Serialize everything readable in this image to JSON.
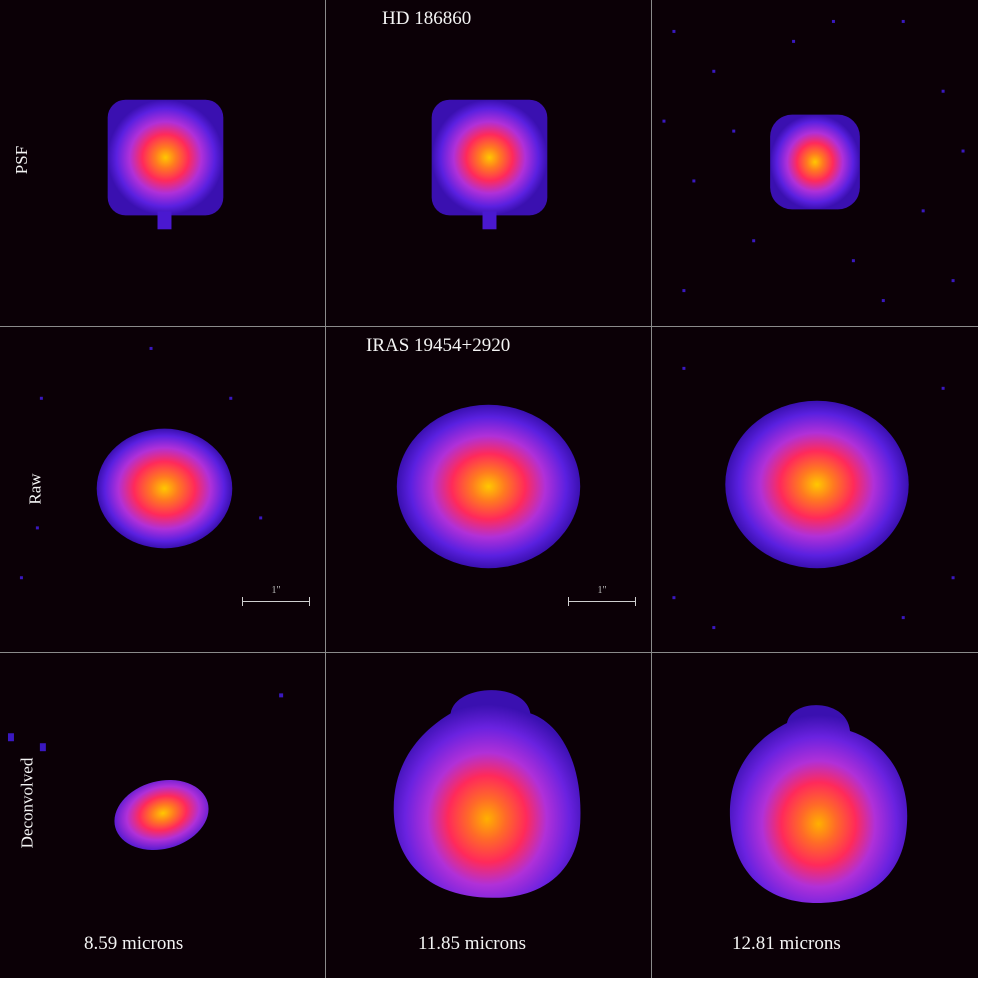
{
  "rows": [
    {
      "key": "psf",
      "section_title": "HD 186860",
      "row_label": "PSF"
    },
    {
      "key": "raw",
      "section_title": "IRAS 19454+2920",
      "row_label": "Raw"
    },
    {
      "key": "deconvolved",
      "section_title": "",
      "row_label": "Deconvolved"
    }
  ],
  "columns": [
    {
      "wavelength_label": "8.59 microns"
    },
    {
      "wavelength_label": "11.85 microns"
    },
    {
      "wavelength_label": "12.81 microns"
    }
  ],
  "scalebar_label": "1\"",
  "colormap": [
    "#0b0006",
    "#2a0a7a",
    "#5a1ee0",
    "#b030d0",
    "#ff2060",
    "#ff7a20",
    "#ffc000"
  ]
}
